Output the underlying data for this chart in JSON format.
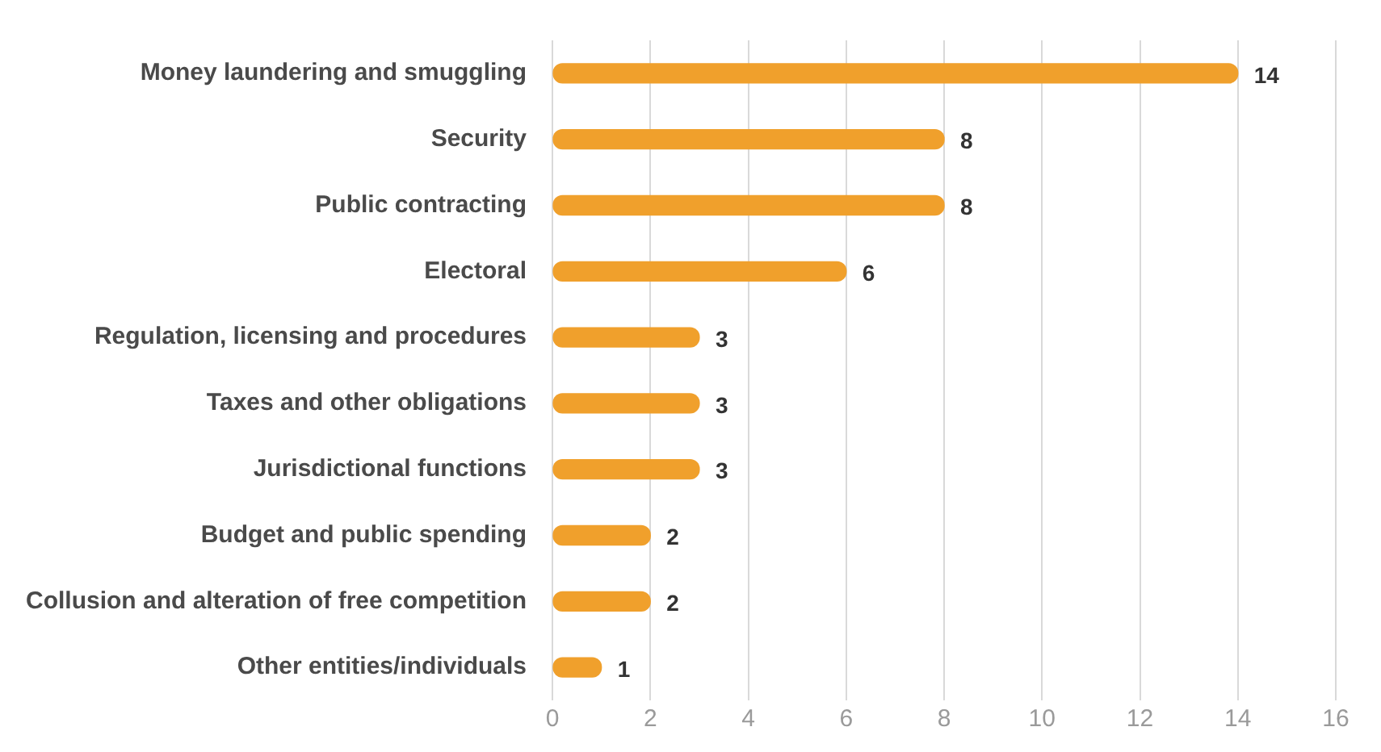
{
  "chart_data": {
    "type": "bar",
    "orientation": "horizontal",
    "categories": [
      "Money laundering and smuggling",
      "Security",
      "Public contracting",
      "Electoral",
      "Regulation, licensing and procedures",
      "Taxes and other obligations",
      "Jurisdictional functions",
      "Budget and public spending",
      "Collusion and alteration of free competition",
      "Other entities/individuals"
    ],
    "values": [
      14,
      8,
      8,
      6,
      3,
      3,
      3,
      2,
      2,
      1
    ],
    "color": "#f0a02c",
    "xlim": [
      0,
      16
    ],
    "xticks": [
      0,
      2,
      4,
      6,
      8,
      10,
      12,
      14,
      16
    ],
    "grid": "x",
    "data_labels": true,
    "legend": false
  }
}
